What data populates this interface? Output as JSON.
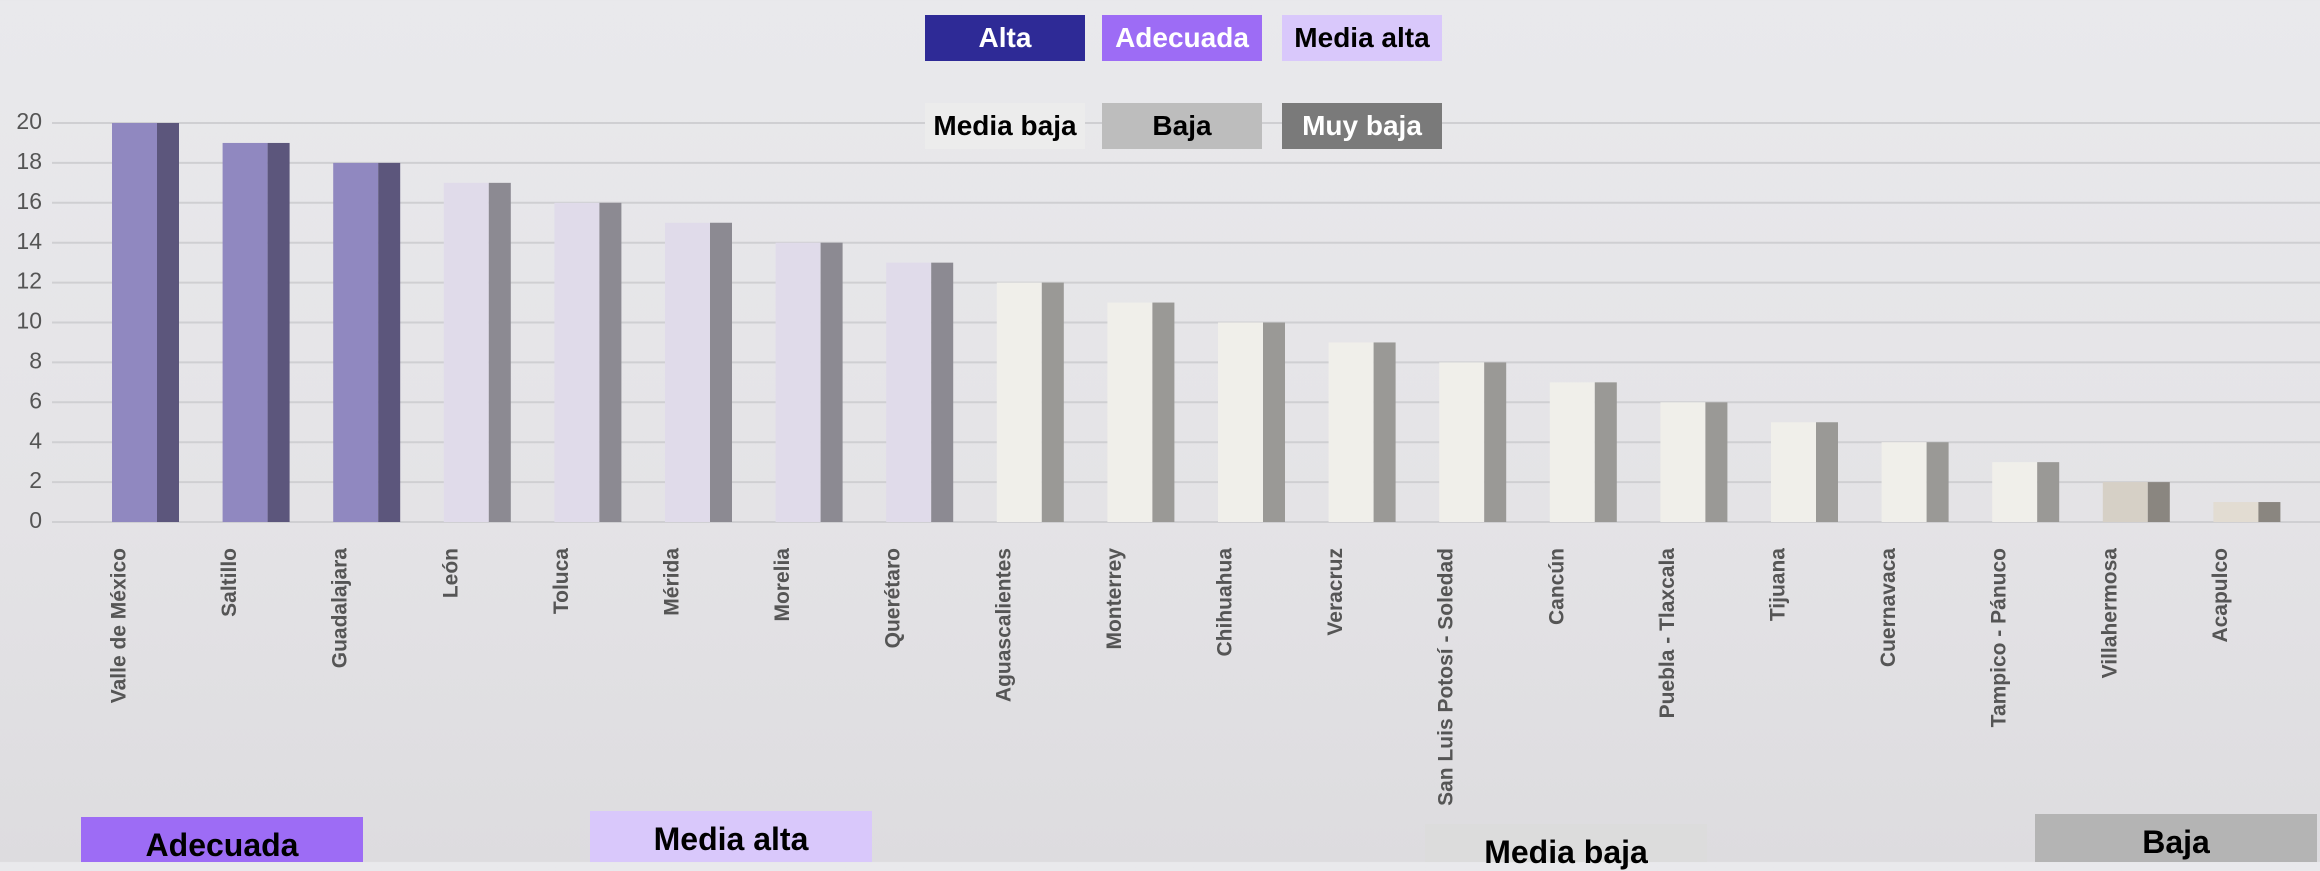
{
  "chart_data": {
    "type": "bar",
    "categories": [
      "Valle de México",
      "Saltillo",
      "Guadalajara",
      "León",
      "Toluca",
      "Mérida",
      "Morelia",
      "Querétaro",
      "Aguascalientes",
      "Monterrey",
      "Chihuahua",
      "Veracruz",
      "San Luis Potosí - Soledad",
      "Cancún",
      "Puebla - Tlaxcala",
      "Tijuana",
      "Cuernavaca",
      "Tampico - Pánuco",
      "Villahermosa",
      "Acapulco"
    ],
    "values": [
      20,
      19,
      18,
      17,
      16,
      15,
      14,
      13,
      12,
      11,
      10,
      9,
      8,
      7,
      6,
      5,
      4,
      3,
      2,
      1
    ],
    "bar_colors": [
      "#9088c0",
      "#9088c0",
      "#9088c0",
      "#e0dbea",
      "#e0dbea",
      "#e0dbea",
      "#e0dbea",
      "#e0dbea",
      "#f0efea",
      "#f0efea",
      "#f0efea",
      "#f0efea",
      "#f0efea",
      "#f0efea",
      "#f0efea",
      "#f0efea",
      "#f0efea",
      "#f0efea",
      "#d6d0c6",
      "#e2dcd2"
    ],
    "shadow_colors": [
      "#5c567c",
      "#5c567c",
      "#5c567c",
      "#8c8a92",
      "#8c8a92",
      "#8c8a92",
      "#8c8a92",
      "#8c8a92",
      "#9a9996",
      "#9a9996",
      "#9a9996",
      "#9a9996",
      "#9a9996",
      "#9a9996",
      "#9a9996",
      "#9a9996",
      "#9a9996",
      "#9a9996",
      "#8a8680",
      "#8a8680"
    ],
    "ylim": [
      0,
      20
    ],
    "yticks": [
      0,
      2,
      4,
      6,
      8,
      10,
      12,
      14,
      16,
      18,
      20
    ],
    "grid": true,
    "legend": [
      {
        "label": "Alta",
        "color": "#2e2a96",
        "text_color": "#ffffff"
      },
      {
        "label": "Adecuada",
        "color": "#9d6cf5",
        "text_color": "#ffffff"
      },
      {
        "label": "Media alta",
        "color": "#d9c8fb",
        "text_color": "#000000"
      },
      {
        "label": "Media baja",
        "color": "#ececec",
        "text_color": "#000000"
      },
      {
        "label": "Baja",
        "color": "#bdbdbd",
        "text_color": "#000000"
      },
      {
        "label": "Muy baja",
        "color": "#7a7a7a",
        "text_color": "#ffffff"
      }
    ],
    "group_labels": [
      {
        "label": "Adecuada",
        "color": "#9d6cf5"
      },
      {
        "label": "Media alta",
        "color": "#d9c8fb"
      },
      {
        "label": "Media baja",
        "color": "#dcdcdc"
      },
      {
        "label": "Baja",
        "color": "#b4b4b4"
      }
    ]
  }
}
